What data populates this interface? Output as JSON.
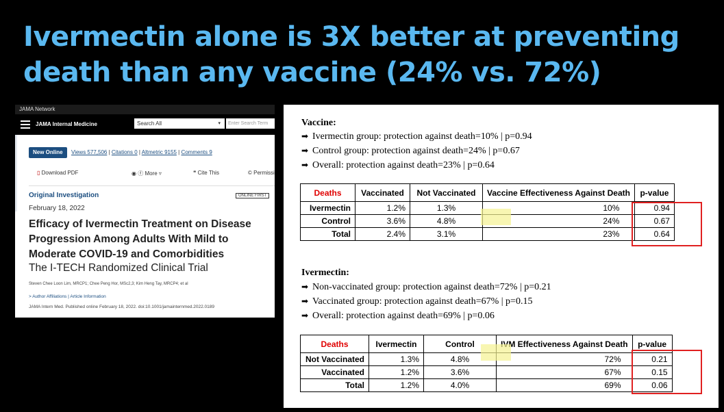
{
  "headline": {
    "line1": "Ivermectin alone is 3X better at preventing",
    "line2": "death than any vaccine (24% vs. 72%)"
  },
  "jama": {
    "network": "JAMA Network",
    "brand": "JAMA Internal Medicine",
    "search_select": "Search All",
    "search_placeholder": "Enter Search Term",
    "new_online": "New Online",
    "views": "Views 577,506",
    "citations": "Citations 0",
    "altmetric": "Altmetric 9155",
    "comments": "Comments 9",
    "download_pdf": "Download PDF",
    "more": "More",
    "cite_this": "Cite This",
    "permissions": "Permissions",
    "article_type": "Original Investigation",
    "online_first": "ONLINE FIRST",
    "date": "February 18, 2022",
    "title": "Efficacy of Ivermectin Treatment on Disease Progression Among Adults With Mild to Moderate COVID-19 and Comorbidities",
    "subtitle": "The I-TECH Randomized Clinical Trial",
    "authors": "Steven Chee Loon Lim, MRCP1; Chee Peng Hor, MSc2,3; Kim Heng Tay, MRCP4; et al",
    "affiliations": "Author Affiliations",
    "article_info": "Article Information",
    "citation": "JAMA Intern Med. Published online February 18, 2022. doi:10.1001/jamainternmed.2022.0189"
  },
  "vaccine": {
    "heading": "Vaccine:",
    "bullets": [
      "Ivermectin group: protection against death=10% | p=0.94",
      "Control group: protection against death=24% | p=0.67",
      "Overall: protection against death=23% | p=0.64"
    ],
    "table": {
      "headers": [
        "Deaths",
        "Vaccinated",
        "Not Vaccinated",
        "Vaccine Effectiveness Against Death",
        "",
        "p-value"
      ],
      "rows": [
        [
          "Ivermectin",
          "1.2%",
          "1.3%",
          "",
          "10%",
          "0.94"
        ],
        [
          "Control",
          "3.6%",
          "4.8%",
          "",
          "24%",
          "0.67"
        ],
        [
          "Total",
          "2.4%",
          "3.1%",
          "",
          "23%",
          "0.64"
        ]
      ]
    }
  },
  "ivermectin": {
    "heading": "Ivermectin:",
    "bullets": [
      "Non-vaccinated group: protection against death=72% | p=0.21",
      "Vaccinated group: protection against death=67% | p=0.15",
      "Overall: protection against death=69% | p=0.06"
    ],
    "table": {
      "headers": [
        "Deaths",
        "Ivermectin",
        "Control",
        "IVM Effectiveness Against Death",
        "",
        "p-value"
      ],
      "rows": [
        [
          "Not Vaccinated",
          "1.3%",
          "4.8%",
          "",
          "72%",
          "0.21"
        ],
        [
          "Vaccinated",
          "1.2%",
          "3.6%",
          "",
          "67%",
          "0.15"
        ],
        [
          "Total",
          "1.2%",
          "4.0%",
          "",
          "69%",
          "0.06"
        ]
      ]
    }
  },
  "colors": {
    "headline": "#5ab8f0",
    "deaths_label": "#e00000",
    "highlight_box": "#e02020",
    "highlight_marker": "#f5f291"
  }
}
